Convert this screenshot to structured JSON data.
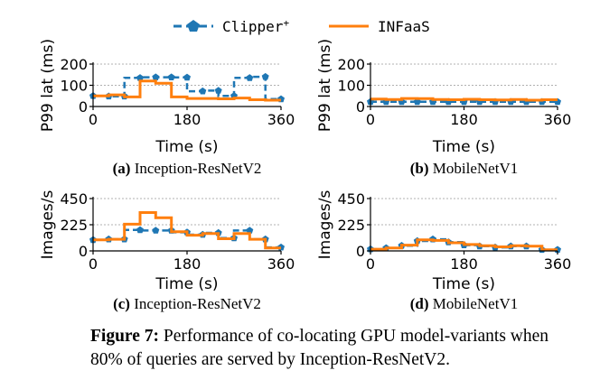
{
  "legend": {
    "clipper_label": "Clipper",
    "clipper_sup": "+",
    "infaas_label": "INFaaS"
  },
  "colors": {
    "clipper": "#1f77b4",
    "infaas": "#ff7f0e",
    "grid": "#b0b0b0"
  },
  "caption": {
    "lead": "Figure 7:",
    "text": " Performance of co-locating GPU model-variants when 80% of queries are served by Inception-ResNetV2."
  },
  "chart_data": [
    {
      "type": "line",
      "label": "(a)",
      "subtitle": "Inception-ResNetV2",
      "xlabel": "Time (s)",
      "ylabel": "P99 lat (ms)",
      "xlim": [
        0,
        360
      ],
      "ylim": [
        0,
        200
      ],
      "xticks": [
        "0",
        "180",
        "360"
      ],
      "yticks": [
        "0",
        "100",
        "200"
      ],
      "grid": true,
      "series": [
        {
          "name": "Clipper+",
          "x": [
            0,
            30,
            30,
            60,
            60,
            90,
            90,
            120,
            120,
            150,
            150,
            180,
            180,
            210,
            210,
            240,
            240,
            270,
            270,
            300,
            300,
            330,
            330,
            360
          ],
          "y": [
            50,
            50,
            48,
            48,
            135,
            135,
            138,
            138,
            138,
            138,
            137,
            137,
            72,
            72,
            75,
            75,
            50,
            50,
            135,
            135,
            140,
            140,
            35,
            35
          ],
          "markers_x": [
            0,
            30,
            60,
            90,
            120,
            150,
            180,
            210,
            240,
            270,
            300,
            330,
            360
          ],
          "markers_y": [
            50,
            48,
            48,
            135,
            138,
            138,
            137,
            72,
            75,
            50,
            135,
            140,
            35
          ]
        },
        {
          "name": "INFaaS",
          "x": [
            0,
            30,
            30,
            60,
            60,
            90,
            90,
            120,
            120,
            150,
            150,
            180,
            180,
            210,
            210,
            240,
            240,
            270,
            270,
            300,
            300,
            330,
            330,
            360
          ],
          "y": [
            50,
            50,
            55,
            55,
            45,
            45,
            120,
            120,
            110,
            110,
            45,
            45,
            38,
            38,
            38,
            38,
            36,
            36,
            40,
            40,
            32,
            32,
            30,
            30
          ]
        }
      ]
    },
    {
      "type": "line",
      "label": "(b)",
      "subtitle": "MobileNetV1",
      "xlabel": "Time (s)",
      "ylabel": "P99 lat (ms)",
      "xlim": [
        0,
        360
      ],
      "ylim": [
        0,
        200
      ],
      "xticks": [
        "0",
        "180",
        "360"
      ],
      "yticks": [
        "0",
        "100",
        "200"
      ],
      "grid": true,
      "series": [
        {
          "name": "Clipper+",
          "x": [
            0,
            30,
            30,
            60,
            60,
            90,
            90,
            120,
            120,
            150,
            150,
            180,
            180,
            210,
            210,
            240,
            240,
            270,
            270,
            300,
            300,
            330,
            330,
            360
          ],
          "y": [
            22,
            22,
            22,
            22,
            22,
            22,
            22,
            22,
            22,
            22,
            22,
            22,
            22,
            22,
            22,
            22,
            22,
            22,
            22,
            22,
            22,
            22,
            22,
            22
          ],
          "markers_x": [
            0,
            30,
            60,
            90,
            120,
            150,
            180,
            210,
            240,
            270,
            300,
            330,
            360
          ],
          "markers_y": [
            22,
            22,
            22,
            22,
            22,
            22,
            22,
            22,
            22,
            22,
            22,
            22,
            22
          ]
        },
        {
          "name": "INFaaS",
          "x": [
            0,
            30,
            30,
            60,
            60,
            90,
            90,
            120,
            120,
            150,
            150,
            180,
            180,
            210,
            210,
            240,
            240,
            270,
            270,
            300,
            300,
            330,
            330,
            360
          ],
          "y": [
            35,
            35,
            33,
            33,
            38,
            38,
            37,
            37,
            33,
            33,
            32,
            32,
            34,
            34,
            32,
            32,
            31,
            31,
            33,
            33,
            30,
            30,
            32,
            32
          ]
        }
      ]
    },
    {
      "type": "line",
      "label": "(c)",
      "subtitle": "Inception-ResNetV2",
      "xlabel": "Time (s)",
      "ylabel": "Images/s",
      "xlim": [
        0,
        360
      ],
      "ylim": [
        0,
        450
      ],
      "xticks": [
        "0",
        "180",
        "360"
      ],
      "yticks": [
        "0",
        "225",
        "450"
      ],
      "grid": true,
      "series": [
        {
          "name": "Clipper+",
          "x": [
            0,
            30,
            30,
            60,
            60,
            90,
            90,
            120,
            120,
            150,
            150,
            180,
            180,
            210,
            210,
            240,
            240,
            270,
            270,
            300,
            300,
            330,
            330,
            360
          ],
          "y": [
            95,
            95,
            100,
            100,
            180,
            180,
            175,
            175,
            175,
            175,
            160,
            160,
            140,
            140,
            155,
            155,
            110,
            110,
            175,
            175,
            100,
            100,
            30,
            30
          ],
          "markers_x": [
            0,
            30,
            60,
            90,
            120,
            150,
            180,
            210,
            240,
            270,
            300,
            330,
            360
          ],
          "markers_y": [
            95,
            100,
            100,
            180,
            175,
            175,
            160,
            140,
            155,
            110,
            175,
            100,
            30
          ]
        },
        {
          "name": "INFaaS",
          "x": [
            0,
            30,
            30,
            60,
            60,
            90,
            90,
            120,
            120,
            150,
            150,
            180,
            180,
            210,
            210,
            240,
            240,
            270,
            270,
            300,
            300,
            330,
            330,
            360
          ],
          "y": [
            95,
            95,
            100,
            100,
            230,
            230,
            330,
            330,
            285,
            285,
            165,
            165,
            135,
            135,
            150,
            150,
            105,
            105,
            150,
            150,
            100,
            100,
            25,
            25
          ]
        }
      ]
    },
    {
      "type": "line",
      "label": "(d)",
      "subtitle": "MobileNetV1",
      "xlabel": "Time (s)",
      "ylabel": "Images/s",
      "xlim": [
        0,
        360
      ],
      "ylim": [
        0,
        450
      ],
      "xticks": [
        "0",
        "180",
        "360"
      ],
      "yticks": [
        "0",
        "225",
        "450"
      ],
      "grid": true,
      "series": [
        {
          "name": "Clipper+",
          "x": [
            0,
            30,
            30,
            60,
            60,
            90,
            90,
            120,
            120,
            150,
            150,
            180,
            180,
            210,
            210,
            240,
            240,
            270,
            270,
            300,
            300,
            330,
            330,
            360
          ],
          "y": [
            15,
            15,
            25,
            25,
            45,
            45,
            85,
            85,
            100,
            100,
            75,
            75,
            50,
            50,
            40,
            40,
            30,
            30,
            40,
            40,
            40,
            40,
            10,
            10
          ],
          "markers_x": [
            0,
            30,
            60,
            90,
            120,
            150,
            180,
            210,
            240,
            270,
            300,
            330,
            360
          ],
          "markers_y": [
            15,
            25,
            45,
            85,
            100,
            75,
            50,
            40,
            30,
            40,
            40,
            10,
            10
          ]
        },
        {
          "name": "INFaaS",
          "x": [
            0,
            30,
            30,
            60,
            60,
            90,
            90,
            120,
            120,
            150,
            150,
            180,
            180,
            210,
            210,
            240,
            240,
            270,
            270,
            300,
            300,
            330,
            330,
            360
          ],
          "y": [
            15,
            15,
            25,
            25,
            50,
            50,
            95,
            95,
            90,
            90,
            70,
            70,
            55,
            55,
            45,
            45,
            35,
            35,
            45,
            45,
            40,
            40,
            10,
            10
          ]
        }
      ]
    }
  ]
}
